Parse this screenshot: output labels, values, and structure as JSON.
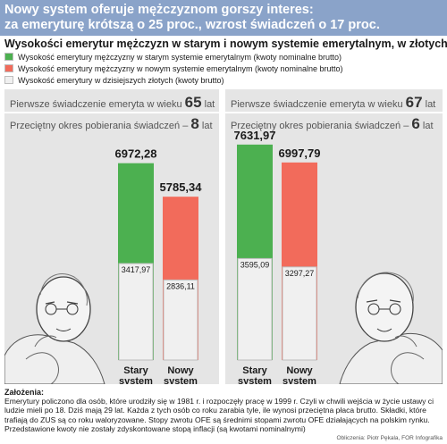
{
  "header": {
    "title_line1": "Nowy system oferuje mężczyznom gorszy interes:",
    "title_line2": "za emeryturę krótszą o 25 proc., wzrost świadczeń o 17 proc."
  },
  "subtitle": "Wysokości emerytur mężczyzn w starym i nowym systemie emerytalnym, w złotych",
  "legend": [
    {
      "label": "Wysokość emerytury mężczyzny w starym systemie emerytalnym (kwoty nominalne brutto)",
      "color": "#4cb050"
    },
    {
      "label": "Wysokość emerytury mężczyzny w nowym systemie emerytalnym (kwoty nominalne brutto)",
      "color": "#f26b5b"
    },
    {
      "label": "Wysokość emerytury w dzisiejszych złotych (kwoty brutto)",
      "color": "#f0f0f0"
    }
  ],
  "panels": {
    "left": {
      "age_text": "Pierwsze świadczenie emeryta w wieku",
      "age_value": "65",
      "age_unit": "lat",
      "period_text": "Przeciętny okres pobierania świadczeń –",
      "period_value": "8",
      "period_unit": "lat"
    },
    "right": {
      "age_text": "Pierwsze świadczenie emeryta w wieku",
      "age_value": "67",
      "age_unit": "lat",
      "period_text": "Przeciętny okres pobierania świadczeń –",
      "period_value": "6",
      "period_unit": "lat"
    }
  },
  "chart_data": {
    "type": "bar",
    "categories": [
      "Stary system",
      "Nowy system"
    ],
    "groups": [
      {
        "name": "65 lat",
        "nominal": [
          6972.28,
          5785.34
        ],
        "real": [
          3417.97,
          2836.11
        ]
      },
      {
        "name": "67 lat",
        "nominal": [
          7631.97,
          6997.79
        ],
        "real": [
          3595.09,
          3297.27
        ]
      }
    ],
    "value_labels": {
      "nominal": [
        "6972,28",
        "5785,34",
        "7631,97",
        "6997,79"
      ],
      "real": [
        "3417,97",
        "2836,11",
        "3595,09",
        "3297,27"
      ]
    },
    "category_labels": [
      [
        "Stary",
        "system"
      ],
      [
        "Nowy",
        "system"
      ],
      [
        "Stary",
        "system"
      ],
      [
        "Nowy",
        "system"
      ]
    ],
    "colors": {
      "old": "#4cb050",
      "new": "#f26b5b",
      "real": "#f0f0f0"
    }
  },
  "notes": {
    "heading": "Założenia:",
    "text": "Emerytury policzono dla osób, które urodziły się w 1981 r. i rozpoczęły pracę w 1999 r. Czyli w chwili wejścia w życie ustawy ci ludzie mieli po 18. Dziś mają 29 lat. Każda z tych osób co roku zarabia tyle, ile wynosi przeciętna płaca brutto. Składki, które trafiają do ZUS są co roku waloryzowane. Stopy zwrotu OFE są średnimi stopami zwrotu OFE działających na polskim rynku. Przedstawione kwoty nie zostały zdyskontowane stopą inflacji (są kwotami nominalnymi)"
  },
  "credit": "Obliczenia: Piotr Pękala, FOR   Infografika"
}
